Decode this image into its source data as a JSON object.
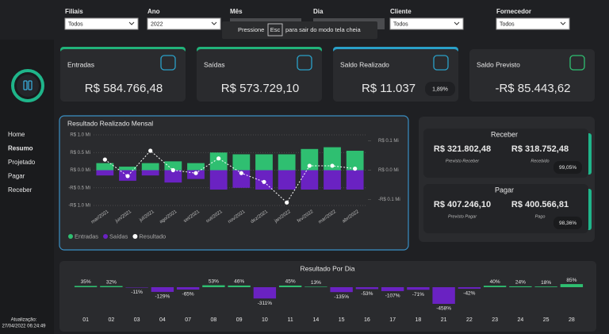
{
  "filters": [
    {
      "label": "Filiais",
      "value": "Todos"
    },
    {
      "label": "Ano",
      "value": "2022"
    },
    {
      "label": "Mês"
    },
    {
      "label": "Dia"
    },
    {
      "label": "Cliente",
      "value": "Todos"
    },
    {
      "label": "Fornecedor",
      "value": "Todos"
    }
  ],
  "fullscreen_notice": {
    "before": "Pressione",
    "key": "Esc",
    "after": "para sair do modo tela cheia"
  },
  "nav": [
    "Home",
    "Resumo",
    "Projetado",
    "Pagar",
    "Receber"
  ],
  "update": {
    "label": "Atualização:",
    "timestamp": "27/04/2022 06:24:49"
  },
  "kpis": [
    {
      "title": "Entradas",
      "value": "R$ 584.766,48"
    },
    {
      "title": "Saídas",
      "value": "R$ 573.729,10"
    },
    {
      "title": "Saldo Realizado",
      "value": "R$ 11.037",
      "badge": "1,89%"
    },
    {
      "title": "Saldo Previsto",
      "value": "-R$ 85.443,62"
    }
  ],
  "monthly_chart": {
    "type": "bar",
    "title": "Resultado Realizado Mensal",
    "categories": [
      "mar/2021",
      "jun/2021",
      "jul/2021",
      "ago/2021",
      "set/2021",
      "out/2021",
      "nov/2021",
      "dez/2021",
      "jan/2022",
      "fev/2022",
      "mar/2022",
      "abr/2022"
    ],
    "series": [
      {
        "name": "Entradas",
        "color": "#2fbf71",
        "values": [
          0.2,
          0.1,
          0.2,
          0.25,
          0.2,
          0.5,
          0.45,
          0.45,
          0.45,
          0.6,
          0.65,
          0.55
        ]
      },
      {
        "name": "Saídas",
        "color": "#6a22c2",
        "values": [
          -0.15,
          -0.3,
          -0.15,
          -0.35,
          -0.25,
          -0.55,
          -0.5,
          -0.55,
          -0.55,
          -0.55,
          -0.55,
          -0.55
        ]
      },
      {
        "name": "Resultado",
        "color": "#ffffff",
        "type": "line",
        "axis": "y2",
        "values": [
          0.036,
          -0.02,
          0.066,
          0.0,
          -0.01,
          0.04,
          -0.01,
          -0.04,
          -0.11,
          0.015,
          0.015,
          0.005
        ]
      }
    ],
    "ylim": [
      -1.0,
      1.0
    ],
    "yticks": [
      {
        "value": 1.0,
        "label": "R$ 1.0 Mi"
      },
      {
        "value": 0.5,
        "label": "R$ 0.5 Mi"
      },
      {
        "value": 0.0,
        "label": "R$ 0.0 Mi"
      },
      {
        "value": -0.5,
        "label": "-R$ 0.5 Mi"
      },
      {
        "value": -1.0,
        "label": "-R$ 1.0 Mi"
      }
    ],
    "y2lim": [
      -0.12,
      0.12
    ],
    "y2ticks": [
      {
        "value": 0.1,
        "label": "R$ 0.1 Mi"
      },
      {
        "value": 0.0,
        "label": "R$ 0.0 Mi"
      },
      {
        "value": -0.1,
        "label": "-R$ 0.1 Mi"
      }
    ],
    "grid": true
  },
  "summary": [
    {
      "title": "Receber",
      "items": [
        {
          "value": "R$ 321.802,48",
          "label": "Previsto Receber"
        },
        {
          "value": "R$ 318.752,48",
          "label": "Recebido"
        }
      ],
      "percent": "99,05%"
    },
    {
      "title": "Pagar",
      "items": [
        {
          "value": "R$ 407.246,10",
          "label": "Previsto Pagar"
        },
        {
          "value": "R$ 400.566,81",
          "label": "Pago"
        }
      ],
      "percent": "98,36%"
    }
  ],
  "daily_chart": {
    "type": "bar",
    "title": "Resultado Por Dia",
    "categories": [
      "01",
      "02",
      "03",
      "04",
      "07",
      "08",
      "09",
      "10",
      "11",
      "14",
      "15",
      "16",
      "17",
      "18",
      "21",
      "22",
      "23",
      "24",
      "25",
      "28"
    ],
    "values": [
      35,
      32,
      -11,
      -129,
      -65,
      53,
      46,
      -311,
      45,
      13,
      -135,
      -53,
      -107,
      -71,
      -458,
      -42,
      40,
      24,
      18,
      85
    ],
    "value_labels": [
      "35%",
      "32%",
      "-11%",
      "-129%",
      "-65%",
      "53%",
      "46%",
      "-311%",
      "45%",
      "13%",
      "-135%",
      "-53%",
      "-107%",
      "-71%",
      "-458%",
      "-42%",
      "40%",
      "24%",
      "18%",
      "85%"
    ],
    "positive_color": "#2fbf71",
    "negative_color": "#6a22c2"
  }
}
